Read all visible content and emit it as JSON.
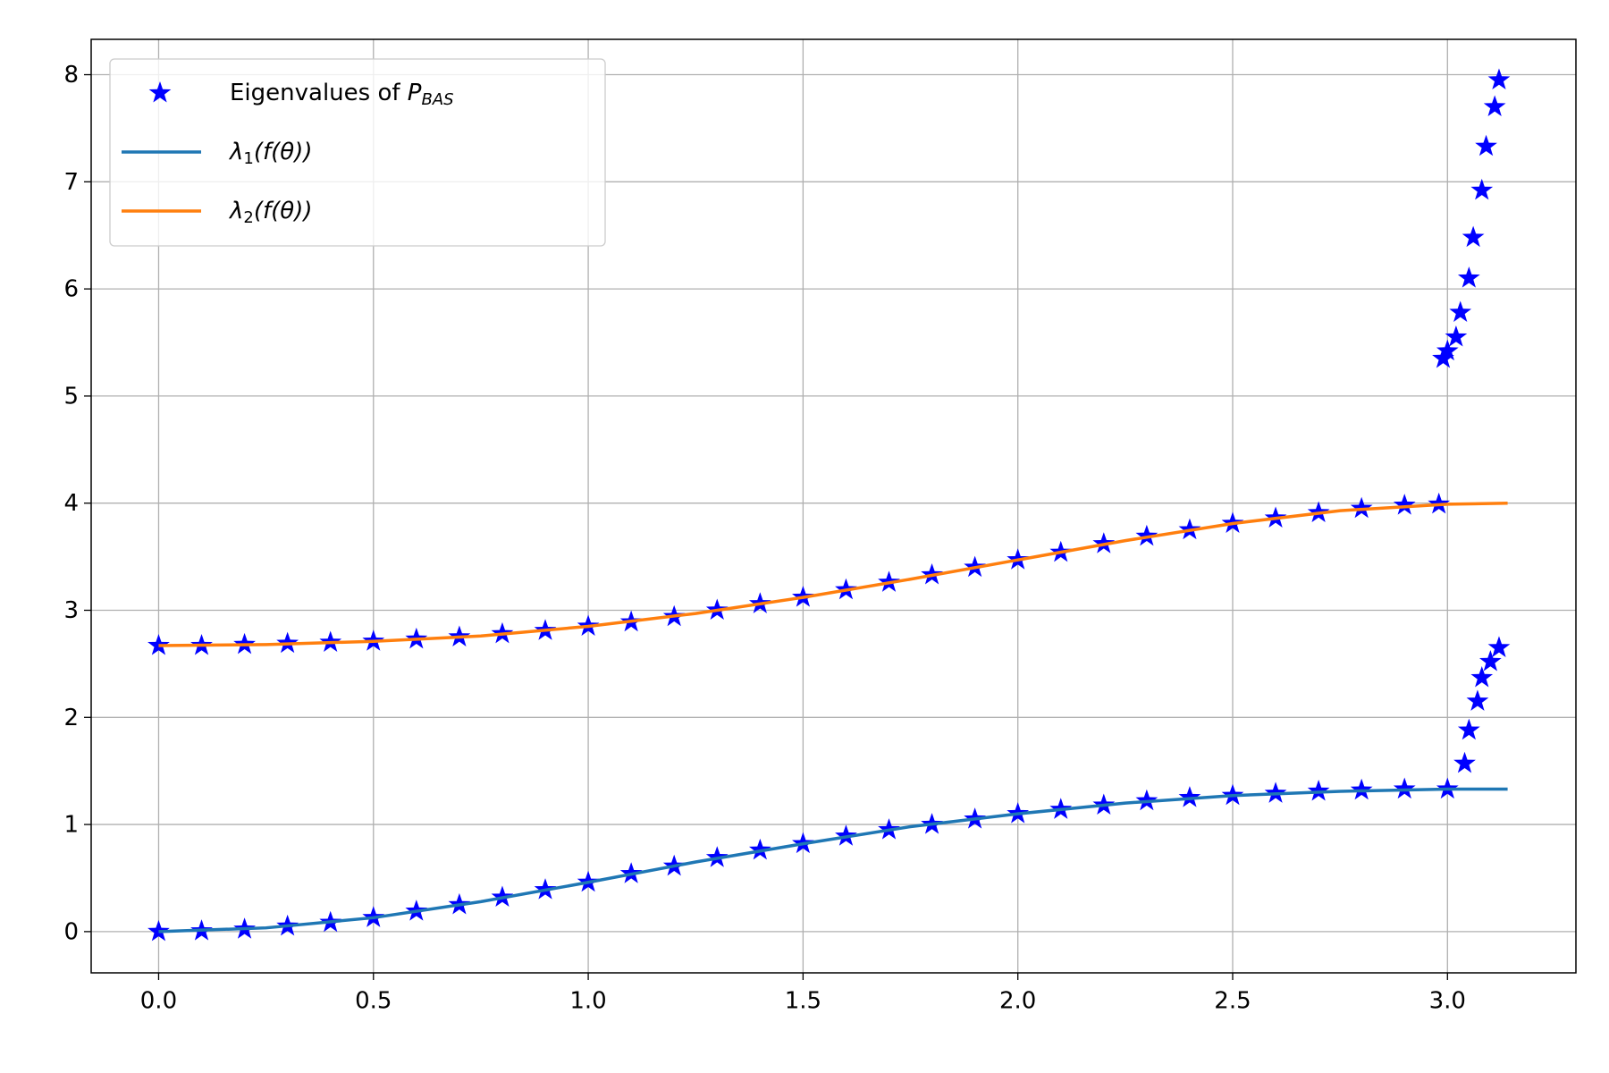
{
  "chart_data": {
    "type": "line",
    "grid": true,
    "legend": "upper left",
    "xlim": [
      -0.157,
      3.299
    ],
    "ylim": [
      -0.385,
      8.33
    ],
    "xticks": [
      {
        "value": 0,
        "label": "0.0"
      },
      {
        "value": 0.5,
        "label": "0.5"
      },
      {
        "value": 1,
        "label": "1.0"
      },
      {
        "value": 1.5,
        "label": "1.5"
      },
      {
        "value": 2,
        "label": "2.0"
      },
      {
        "value": 2.5,
        "label": "2.5"
      },
      {
        "value": 3,
        "label": "3.0"
      }
    ],
    "yticks": [
      0,
      1,
      2,
      3,
      4,
      5,
      6,
      7,
      8
    ],
    "series": [
      {
        "name": {
          "main": "Eigenvalues of ",
          "var": "P",
          "sub": "BAS"
        },
        "type": "scatter",
        "marker": "star",
        "color": "#0000ff",
        "x": [
          0,
          0.1,
          0.2,
          0.3,
          0.4,
          0.5,
          0.6,
          0.7,
          0.8,
          0.9,
          1.0,
          1.1,
          1.2,
          1.3,
          1.4,
          1.5,
          1.6,
          1.7,
          1.8,
          1.9,
          2.0,
          2.1,
          2.2,
          2.3,
          2.4,
          2.5,
          2.6,
          2.7,
          2.8,
          2.9,
          3.0,
          0,
          0.1,
          0.2,
          0.3,
          0.4,
          0.5,
          0.6,
          0.7,
          0.8,
          0.9,
          1.0,
          1.1,
          1.2,
          1.3,
          1.4,
          1.5,
          1.6,
          1.7,
          1.8,
          1.9,
          2.0,
          2.1,
          2.2,
          2.3,
          2.4,
          2.5,
          2.6,
          2.7,
          2.8,
          2.9,
          2.98,
          2.99,
          3.0,
          3.02,
          3.03,
          3.05,
          3.06,
          3.08,
          3.09,
          3.11,
          3.12,
          3.04,
          3.05,
          3.07,
          3.08,
          3.1,
          3.12
        ],
        "values": [
          0,
          0.006,
          0.022,
          0.05,
          0.085,
          0.13,
          0.19,
          0.25,
          0.32,
          0.39,
          0.46,
          0.54,
          0.61,
          0.69,
          0.76,
          0.82,
          0.89,
          0.95,
          1.0,
          1.05,
          1.1,
          1.14,
          1.18,
          1.22,
          1.25,
          1.27,
          1.29,
          1.31,
          1.32,
          1.33,
          1.33,
          2.67,
          2.67,
          2.68,
          2.69,
          2.7,
          2.71,
          2.73,
          2.75,
          2.78,
          2.81,
          2.85,
          2.89,
          2.94,
          3.0,
          3.06,
          3.12,
          3.19,
          3.26,
          3.33,
          3.4,
          3.47,
          3.54,
          3.62,
          3.69,
          3.75,
          3.81,
          3.86,
          3.91,
          3.95,
          3.98,
          3.99,
          5.35,
          5.42,
          5.55,
          5.78,
          6.1,
          6.48,
          6.92,
          7.33,
          7.7,
          7.95,
          1.57,
          1.88,
          2.15,
          2.37,
          2.52,
          2.65
        ]
      },
      {
        "name": {
          "main": "λ",
          "sub": "1",
          "tail": "(f(θ))"
        },
        "type": "line",
        "color": "#1f77b4",
        "x": [
          0,
          0.25,
          0.5,
          0.75,
          1.0,
          1.25,
          1.5,
          1.75,
          2.0,
          2.25,
          2.5,
          2.75,
          3.0,
          3.14
        ],
        "values": [
          0,
          0.035,
          0.13,
          0.28,
          0.46,
          0.65,
          0.82,
          0.98,
          1.1,
          1.2,
          1.27,
          1.31,
          1.33,
          1.33
        ]
      },
      {
        "name": {
          "main": "λ",
          "sub": "2",
          "tail": "(f(θ))"
        },
        "type": "line",
        "color": "#ff7f0e",
        "x": [
          0,
          0.25,
          0.5,
          0.75,
          1.0,
          1.25,
          1.5,
          1.75,
          2.0,
          2.25,
          2.5,
          2.75,
          3.0,
          3.14
        ],
        "values": [
          2.67,
          2.68,
          2.71,
          2.76,
          2.85,
          2.97,
          3.12,
          3.29,
          3.47,
          3.65,
          3.81,
          3.93,
          3.99,
          4.0
        ]
      }
    ]
  }
}
